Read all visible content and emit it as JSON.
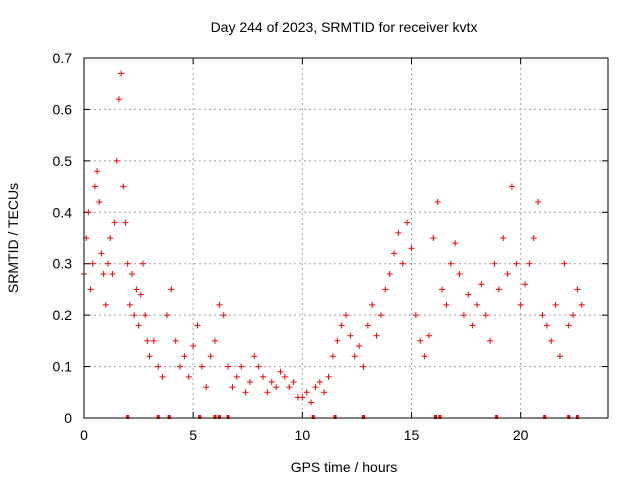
{
  "chart_data": {
    "type": "scatter",
    "title": "Day 244 of 2023, SRMTID for receiver kvtx",
    "xlabel": "GPS time / hours",
    "ylabel": "SRMTID / TECUs",
    "xlim": [
      0,
      24
    ],
    "ylim": [
      0,
      0.7
    ],
    "xticks": [
      0,
      5,
      10,
      15,
      20
    ],
    "xtick_labels": [
      "0",
      "5",
      "10",
      "15",
      "20"
    ],
    "yticks": [
      0,
      0.1,
      0.2,
      0.3,
      0.4,
      0.5,
      0.6,
      0.7
    ],
    "ytick_labels": [
      "0",
      "0.1",
      "0.2",
      "0.3",
      "0.4",
      "0.5",
      "0.6",
      "0.7"
    ],
    "grid": true,
    "marker": "+",
    "color": "#ff0000",
    "series": [
      {
        "name": "SRMTID",
        "x": [
          0.0,
          0.1,
          0.2,
          0.3,
          0.4,
          0.5,
          0.6,
          0.7,
          0.8,
          0.9,
          1.0,
          1.1,
          1.2,
          1.3,
          1.4,
          1.5,
          1.6,
          1.7,
          1.8,
          1.9,
          2.0,
          2.1,
          2.2,
          2.3,
          2.4,
          2.5,
          2.6,
          2.7,
          2.8,
          2.9,
          3.0,
          3.2,
          3.4,
          3.6,
          3.8,
          4.0,
          4.2,
          4.4,
          4.6,
          4.8,
          5.0,
          5.2,
          5.4,
          5.6,
          5.8,
          6.0,
          6.2,
          6.4,
          6.6,
          6.8,
          7.0,
          7.2,
          7.4,
          7.6,
          7.8,
          8.0,
          8.2,
          8.4,
          8.6,
          8.8,
          9.0,
          9.2,
          9.4,
          9.6,
          9.8,
          10.0,
          10.2,
          10.4,
          10.6,
          10.8,
          11.0,
          11.2,
          11.4,
          11.6,
          11.8,
          12.0,
          12.2,
          12.4,
          12.6,
          12.8,
          13.0,
          13.2,
          13.4,
          13.6,
          13.8,
          14.0,
          14.2,
          14.4,
          14.6,
          14.8,
          15.0,
          15.2,
          15.4,
          15.6,
          15.8,
          16.0,
          16.2,
          16.4,
          16.6,
          16.8,
          17.0,
          17.2,
          17.4,
          17.6,
          17.8,
          18.0,
          18.2,
          18.4,
          18.6,
          18.8,
          19.0,
          19.2,
          19.4,
          19.6,
          19.8,
          20.0,
          20.2,
          20.4,
          20.6,
          20.8,
          21.0,
          21.2,
          21.4,
          21.6,
          21.8,
          22.0,
          22.2,
          22.4,
          22.6,
          22.8
        ],
        "y": [
          0.28,
          0.35,
          0.4,
          0.25,
          0.3,
          0.45,
          0.48,
          0.42,
          0.32,
          0.28,
          0.22,
          0.3,
          0.35,
          0.28,
          0.38,
          0.5,
          0.62,
          0.67,
          0.45,
          0.38,
          0.3,
          0.22,
          0.28,
          0.2,
          0.25,
          0.18,
          0.24,
          0.3,
          0.2,
          0.15,
          0.12,
          0.15,
          0.1,
          0.08,
          0.2,
          0.25,
          0.15,
          0.1,
          0.12,
          0.08,
          0.14,
          0.18,
          0.1,
          0.06,
          0.12,
          0.15,
          0.22,
          0.2,
          0.1,
          0.06,
          0.08,
          0.1,
          0.05,
          0.07,
          0.12,
          0.1,
          0.08,
          0.05,
          0.07,
          0.06,
          0.09,
          0.08,
          0.06,
          0.07,
          0.04,
          0.04,
          0.05,
          0.03,
          0.06,
          0.07,
          0.05,
          0.08,
          0.12,
          0.15,
          0.18,
          0.2,
          0.16,
          0.12,
          0.14,
          0.1,
          0.18,
          0.22,
          0.16,
          0.2,
          0.25,
          0.28,
          0.32,
          0.36,
          0.3,
          0.38,
          0.33,
          0.2,
          0.15,
          0.12,
          0.16,
          0.35,
          0.42,
          0.25,
          0.22,
          0.3,
          0.34,
          0.28,
          0.2,
          0.24,
          0.18,
          0.22,
          0.26,
          0.2,
          0.15,
          0.3,
          0.25,
          0.35,
          0.28,
          0.45,
          0.3,
          0.22,
          0.26,
          0.3,
          0.35,
          0.42,
          0.2,
          0.18,
          0.15,
          0.22,
          0.12,
          0.3,
          0.18,
          0.2,
          0.25,
          0.22
        ]
      }
    ],
    "gap_markers_x": [
      2.0,
      3.4,
      3.9,
      5.3,
      6.0,
      6.2,
      6.6,
      10.5,
      11.5,
      12.8,
      16.1,
      16.3,
      18.9,
      21.1,
      22.2,
      22.6
    ]
  }
}
